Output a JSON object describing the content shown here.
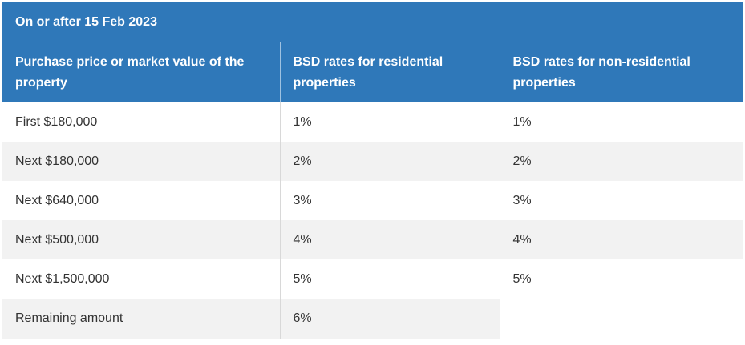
{
  "table": {
    "title": "On or after 15 Feb 2023",
    "headers": [
      "Purchase price or market value of the property",
      "BSD rates for residential properties",
      "BSD rates for non-residential properties"
    ],
    "rows": [
      {
        "band": "First $180,000",
        "residential": "1%",
        "non_residential": "1%"
      },
      {
        "band": "Next $180,000",
        "residential": "2%",
        "non_residential": "2%"
      },
      {
        "band": "Next $640,000",
        "residential": "3%",
        "non_residential": "3%"
      },
      {
        "band": "Next $500,000",
        "residential": "4%",
        "non_residential": "4%"
      },
      {
        "band": "Next $1,500,000",
        "residential": "5%",
        "non_residential": "5%"
      },
      {
        "band": "Remaining amount",
        "residential": "6%",
        "non_residential": ""
      }
    ]
  },
  "colors": {
    "header_bg": "#2f78b9",
    "stripe_bg": "#f2f2f2",
    "text": "#333333"
  }
}
